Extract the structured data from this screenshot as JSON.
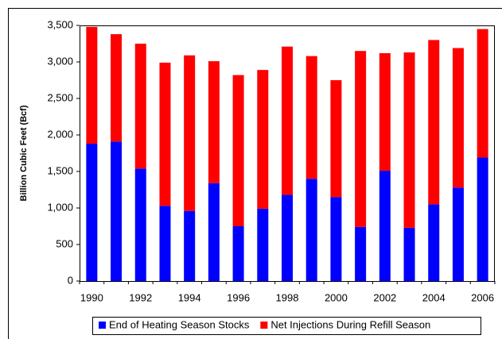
{
  "chart_data": {
    "type": "stacked_bar",
    "y_label": "Billion Cubic Feet (Bcf)",
    "categories": [
      "1990",
      null,
      "1992",
      null,
      "1994",
      null,
      "1996",
      null,
      "1998",
      null,
      "2000",
      null,
      "2002",
      null,
      "2004",
      null,
      "2006"
    ],
    "series": [
      {
        "name": "End of Heating Season Stocks",
        "color": "#0000ff",
        "values": [
          1880,
          1910,
          1540,
          1030,
          960,
          1340,
          750,
          990,
          1180,
          1400,
          1150,
          740,
          1510,
          730,
          1050,
          1280,
          1690
        ]
      },
      {
        "name": "Net Injections During Refill Season",
        "color": "#ff0000",
        "values": [
          1600,
          1470,
          1710,
          1960,
          2130,
          1670,
          2070,
          1900,
          2030,
          1680,
          1600,
          2410,
          1610,
          2400,
          2250,
          1910,
          1760
        ]
      }
    ],
    "ylim": [
      0,
      3500
    ],
    "yticks": [
      0,
      500,
      {
        "value": 1000,
        "label": "1,000"
      },
      {
        "value": 1500,
        "label": "1,500"
      },
      {
        "value": 2000,
        "label": "2,000"
      },
      {
        "value": 2500,
        "label": "2,500"
      },
      {
        "value": 3000,
        "label": "3,000"
      },
      {
        "value": 3500,
        "label": "3,500"
      }
    ],
    "grid": false,
    "legend": "bottom"
  }
}
